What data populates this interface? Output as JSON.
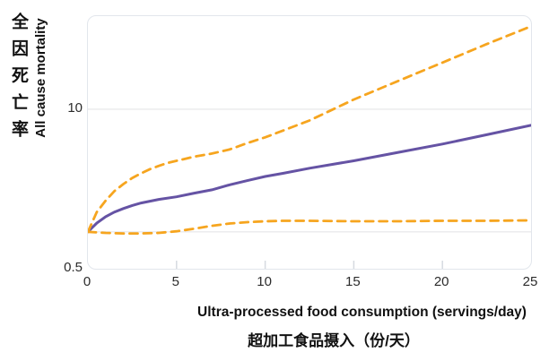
{
  "y_axis": {
    "label_zh": "全因死亡率",
    "label_en": "All cause mortality",
    "tick_labels": [
      "0.5",
      "10"
    ]
  },
  "x_axis": {
    "label_en": "Ultra-processed food consumption (servings/day)",
    "label_zh": "超加工食品摄入（份/天）",
    "tick_labels": [
      "0",
      "5",
      "10",
      "15",
      "20",
      "25"
    ]
  },
  "chart_data": {
    "type": "line",
    "title": "",
    "xlabel": "Ultra-processed food consumption (servings/day)",
    "xlabel_zh": "超加工食品摄入（份/天）",
    "ylabel": "All cause mortality",
    "ylabel_zh": "全因死亡率",
    "y_scale": "log",
    "xlim": [
      0,
      25
    ],
    "ylim": [
      0.5,
      57.5
    ],
    "x_ticks": [
      0,
      5,
      10,
      15,
      20,
      25
    ],
    "x_tick_marks": [
      5,
      10,
      15,
      20
    ],
    "y_ticks": [
      0.5,
      10
    ],
    "grid_values": [
      10,
      1.0
    ],
    "reference_value": 1.0,
    "legend": "none",
    "series": [
      {
        "name": "hazard-ratio-estimate",
        "color": "#6553A4",
        "style": "solid",
        "points": [
          [
            0,
            1.0
          ],
          [
            0.5,
            1.18
          ],
          [
            1,
            1.33
          ],
          [
            1.5,
            1.45
          ],
          [
            2,
            1.55
          ],
          [
            2.5,
            1.64
          ],
          [
            3,
            1.72
          ],
          [
            4,
            1.84
          ],
          [
            5,
            1.93
          ],
          [
            6,
            2.07
          ],
          [
            7,
            2.2
          ],
          [
            8,
            2.42
          ],
          [
            9,
            2.62
          ],
          [
            10,
            2.83
          ],
          [
            11,
            3.0
          ],
          [
            12.5,
            3.3
          ],
          [
            15,
            3.8
          ],
          [
            17.5,
            4.45
          ],
          [
            20,
            5.2
          ],
          [
            22.5,
            6.2
          ],
          [
            25,
            7.4
          ]
        ]
      },
      {
        "name": "confidence-interval-upper",
        "color": "#F6A51F",
        "style": "dashed",
        "points": [
          [
            0,
            1.0
          ],
          [
            0.5,
            1.45
          ],
          [
            1,
            1.8
          ],
          [
            1.5,
            2.15
          ],
          [
            2,
            2.45
          ],
          [
            2.5,
            2.75
          ],
          [
            3,
            3.0
          ],
          [
            3.5,
            3.25
          ],
          [
            4,
            3.45
          ],
          [
            4.5,
            3.65
          ],
          [
            5,
            3.8
          ],
          [
            5.5,
            3.95
          ],
          [
            6,
            4.1
          ],
          [
            7,
            4.35
          ],
          [
            8,
            4.7
          ],
          [
            9,
            5.3
          ],
          [
            10,
            5.9
          ],
          [
            11,
            6.7
          ],
          [
            12.5,
            8.1
          ],
          [
            15,
            12.0
          ],
          [
            17.5,
            17.0
          ],
          [
            20,
            24.0
          ],
          [
            22.5,
            34.0
          ],
          [
            25,
            47.5
          ]
        ]
      },
      {
        "name": "confidence-interval-lower",
        "color": "#F6A51F",
        "style": "dashed",
        "points": [
          [
            0,
            1.0
          ],
          [
            0.5,
            0.99
          ],
          [
            1,
            0.98
          ],
          [
            2,
            0.97
          ],
          [
            3,
            0.97
          ],
          [
            4,
            0.98
          ],
          [
            5,
            1.01
          ],
          [
            6,
            1.06
          ],
          [
            7,
            1.12
          ],
          [
            8,
            1.17
          ],
          [
            9,
            1.2
          ],
          [
            10,
            1.22
          ],
          [
            11,
            1.23
          ],
          [
            12.5,
            1.23
          ],
          [
            15,
            1.22
          ],
          [
            17.5,
            1.22
          ],
          [
            20,
            1.23
          ],
          [
            22.5,
            1.23
          ],
          [
            25,
            1.24
          ]
        ]
      }
    ],
    "colors": {
      "estimate_line": "#6553A4",
      "ci_line": "#F6A51F",
      "gridline": "#E9EAEC",
      "frame": "#E2E6EC",
      "tick_text": "#2b2b2b",
      "label_text": "#111111"
    }
  }
}
